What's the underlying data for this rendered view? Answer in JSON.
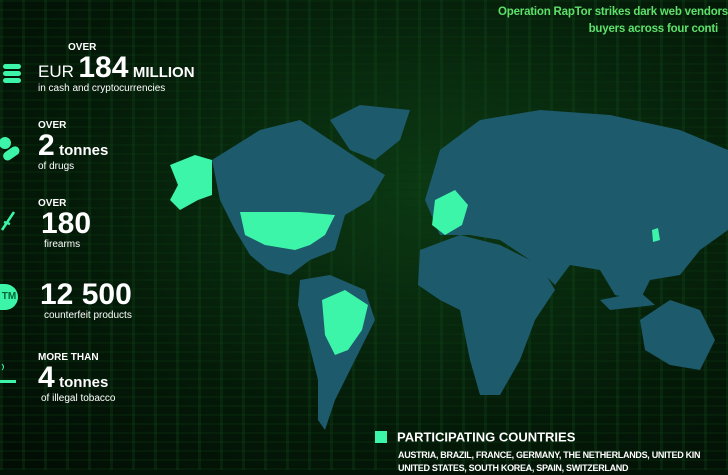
{
  "headline": {
    "line1": "Operation RapTor strikes dark web vendors",
    "line2": "buyers across four conti"
  },
  "stats": [
    {
      "icon": "coins-stack-icon",
      "prefix": "OVER",
      "value_pre": "EUR",
      "value": "184",
      "unit": "MILLION",
      "desc": "in cash and cryptocurrencies"
    },
    {
      "icon": "pills-icon",
      "prefix": "OVER",
      "value": "2",
      "unit": "tonnes",
      "desc": "of drugs"
    },
    {
      "icon": "rifle-icon",
      "prefix": "OVER",
      "value": "180",
      "unit": "",
      "desc": "firearms"
    },
    {
      "icon": "trademark-icon",
      "icon_text": "TM",
      "prefix": "",
      "value": "12 500",
      "unit": "",
      "desc": "counterfeit products"
    },
    {
      "icon": "cigarette-icon",
      "prefix": "MORE THAN",
      "value": "4",
      "unit": "tonnes",
      "desc": "of illegal tobacco"
    }
  ],
  "legend": {
    "title": "PARTICIPATING COUNTRIES",
    "line1": "AUSTRIA, BRAZIL, FRANCE, GERMANY, THE NETHERLANDS, UNITED KIN",
    "line2": "UNITED STATES, SOUTH KOREA, SPAIN, SWITZERLAND"
  },
  "colors": {
    "land": "#1d5a6c",
    "highlight": "#3cf5a8",
    "headline": "#5ee06a"
  }
}
